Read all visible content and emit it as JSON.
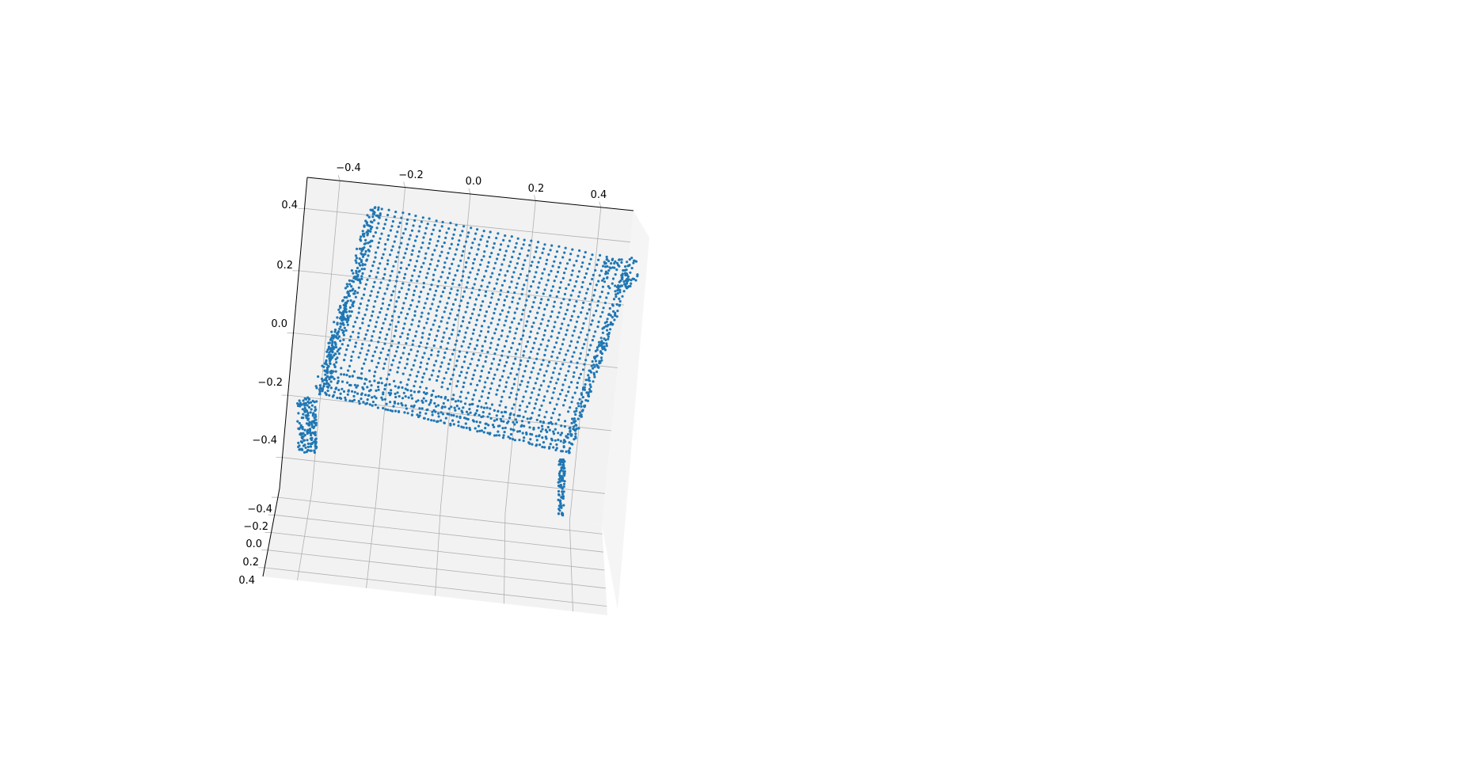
{
  "chart_data": {
    "type": "scatter",
    "projection": "3d",
    "title": "",
    "xlabel": "",
    "ylabel": "",
    "zlabel": "",
    "grid": true,
    "legend": "none",
    "marker_color": "#1f77b4",
    "pane_color": "#f2f2f2",
    "grid_color": "#b0b0b0",
    "x_ticks": [
      "−0.4",
      "−0.2",
      "0.0",
      "0.2",
      "0.4"
    ],
    "z_ticks": [
      "0.4",
      "0.2",
      "0.0",
      "−0.2",
      "−0.4"
    ],
    "y_ticks": [
      "−0.4",
      "−0.2",
      "0.0",
      "0.2",
      "0.4"
    ],
    "xlim": [
      -0.5,
      0.5
    ],
    "ylim": [
      -0.5,
      0.5
    ],
    "zlim": [
      -0.5,
      0.5
    ],
    "point_count_estimate": 2500,
    "object_shape": "bench point cloud: flat top surface with one short front apron and a leg at the far-left corner and another near the right",
    "top_surface": {
      "x_range": [
        -0.45,
        0.45
      ],
      "y_range": [
        -0.45,
        0.4
      ],
      "z": 0.35
    },
    "legs": [
      {
        "x": -0.45,
        "y": 0.35,
        "z_range": [
          -0.45,
          0.35
        ]
      },
      {
        "x": 0.25,
        "y": 0.35,
        "z_range": [
          -0.45,
          0.35
        ]
      }
    ]
  }
}
